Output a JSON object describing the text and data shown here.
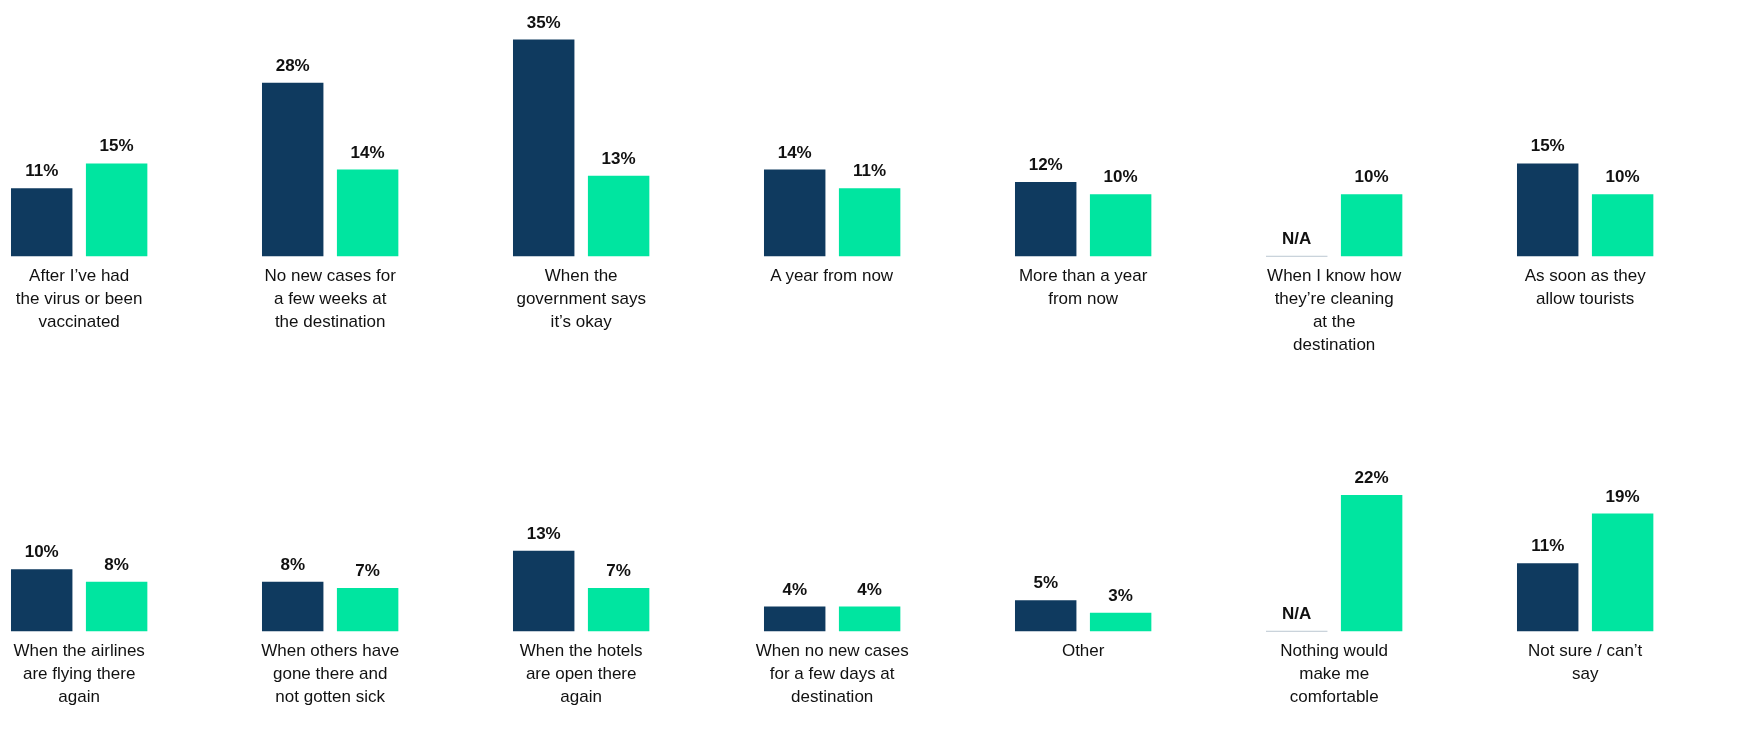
{
  "chart_data": [
    {
      "type": "bar",
      "categories": [
        "After I’ve had the virus or been vaccinated"
      ],
      "series": [
        {
          "color": "#0f3a5f",
          "values": [
            11
          ],
          "value_labels": [
            "11%"
          ]
        },
        {
          "color": "#00e5a0",
          "values": [
            15
          ],
          "value_labels": [
            "15%"
          ]
        }
      ]
    },
    {
      "type": "bar",
      "categories": [
        "No new cases for a few weeks at the destination"
      ],
      "series": [
        {
          "color": "#0f3a5f",
          "values": [
            28
          ],
          "value_labels": [
            "28%"
          ]
        },
        {
          "color": "#00e5a0",
          "values": [
            14
          ],
          "value_labels": [
            "14%"
          ]
        }
      ]
    },
    {
      "type": "bar",
      "categories": [
        "When the government says it’s okay"
      ],
      "series": [
        {
          "color": "#0f3a5f",
          "values": [
            35
          ],
          "value_labels": [
            "35%"
          ]
        },
        {
          "color": "#00e5a0",
          "values": [
            13
          ],
          "value_labels": [
            "13%"
          ]
        }
      ]
    },
    {
      "type": "bar",
      "categories": [
        "A year from now"
      ],
      "series": [
        {
          "color": "#0f3a5f",
          "values": [
            14
          ],
          "value_labels": [
            "14%"
          ]
        },
        {
          "color": "#00e5a0",
          "values": [
            11
          ],
          "value_labels": [
            "11%"
          ]
        }
      ]
    },
    {
      "type": "bar",
      "categories": [
        "More than a year from now"
      ],
      "series": [
        {
          "color": "#0f3a5f",
          "values": [
            12
          ],
          "value_labels": [
            "12%"
          ]
        },
        {
          "color": "#00e5a0",
          "values": [
            10
          ],
          "value_labels": [
            "10%"
          ]
        }
      ]
    },
    {
      "type": "bar",
      "categories": [
        "When I know how they’re cleaning at the destination"
      ],
      "series": [
        {
          "color": "#0f3a5f",
          "values": [
            null
          ],
          "value_labels": [
            "N/A"
          ]
        },
        {
          "color": "#00e5a0",
          "values": [
            10
          ],
          "value_labels": [
            "10%"
          ]
        }
      ]
    },
    {
      "type": "bar",
      "categories": [
        "As soon as they allow tourists"
      ],
      "series": [
        {
          "color": "#0f3a5f",
          "values": [
            15
          ],
          "value_labels": [
            "15%"
          ]
        },
        {
          "color": "#00e5a0",
          "values": [
            10
          ],
          "value_labels": [
            "10%"
          ]
        }
      ]
    },
    {
      "type": "bar",
      "categories": [
        "When the airlines are flying there again"
      ],
      "series": [
        {
          "color": "#0f3a5f",
          "values": [
            10
          ],
          "value_labels": [
            "10%"
          ]
        },
        {
          "color": "#00e5a0",
          "values": [
            8
          ],
          "value_labels": [
            "8%"
          ]
        }
      ]
    },
    {
      "type": "bar",
      "categories": [
        "When others have gone there and not gotten sick"
      ],
      "series": [
        {
          "color": "#0f3a5f",
          "values": [
            8
          ],
          "value_labels": [
            "8%"
          ]
        },
        {
          "color": "#00e5a0",
          "values": [
            7
          ],
          "value_labels": [
            "7%"
          ]
        }
      ]
    },
    {
      "type": "bar",
      "categories": [
        "When the hotels are open there again"
      ],
      "series": [
        {
          "color": "#0f3a5f",
          "values": [
            13
          ],
          "value_labels": [
            "13%"
          ]
        },
        {
          "color": "#00e5a0",
          "values": [
            7
          ],
          "value_labels": [
            "7%"
          ]
        }
      ]
    },
    {
      "type": "bar",
      "categories": [
        "When no new cases for a few days at destination"
      ],
      "series": [
        {
          "color": "#0f3a5f",
          "values": [
            4
          ],
          "value_labels": [
            "4%"
          ]
        },
        {
          "color": "#00e5a0",
          "values": [
            4
          ],
          "value_labels": [
            "4%"
          ]
        }
      ]
    },
    {
      "type": "bar",
      "categories": [
        "Other"
      ],
      "series": [
        {
          "color": "#0f3a5f",
          "values": [
            5
          ],
          "value_labels": [
            "5%"
          ]
        },
        {
          "color": "#00e5a0",
          "values": [
            3
          ],
          "value_labels": [
            "3%"
          ]
        }
      ]
    },
    {
      "type": "bar",
      "categories": [
        "Nothing would make me comfortable"
      ],
      "series": [
        {
          "color": "#0f3a5f",
          "values": [
            null
          ],
          "value_labels": [
            "N/A"
          ]
        },
        {
          "color": "#00e5a0",
          "values": [
            22
          ],
          "value_labels": [
            "22%"
          ]
        }
      ]
    },
    {
      "type": "bar",
      "categories": [
        "Not sure / can’t say"
      ],
      "series": [
        {
          "color": "#0f3a5f",
          "values": [
            11
          ],
          "value_labels": [
            "11%"
          ]
        },
        {
          "color": "#00e5a0",
          "values": [
            19
          ],
          "value_labels": [
            "19%"
          ]
        }
      ]
    }
  ]
}
